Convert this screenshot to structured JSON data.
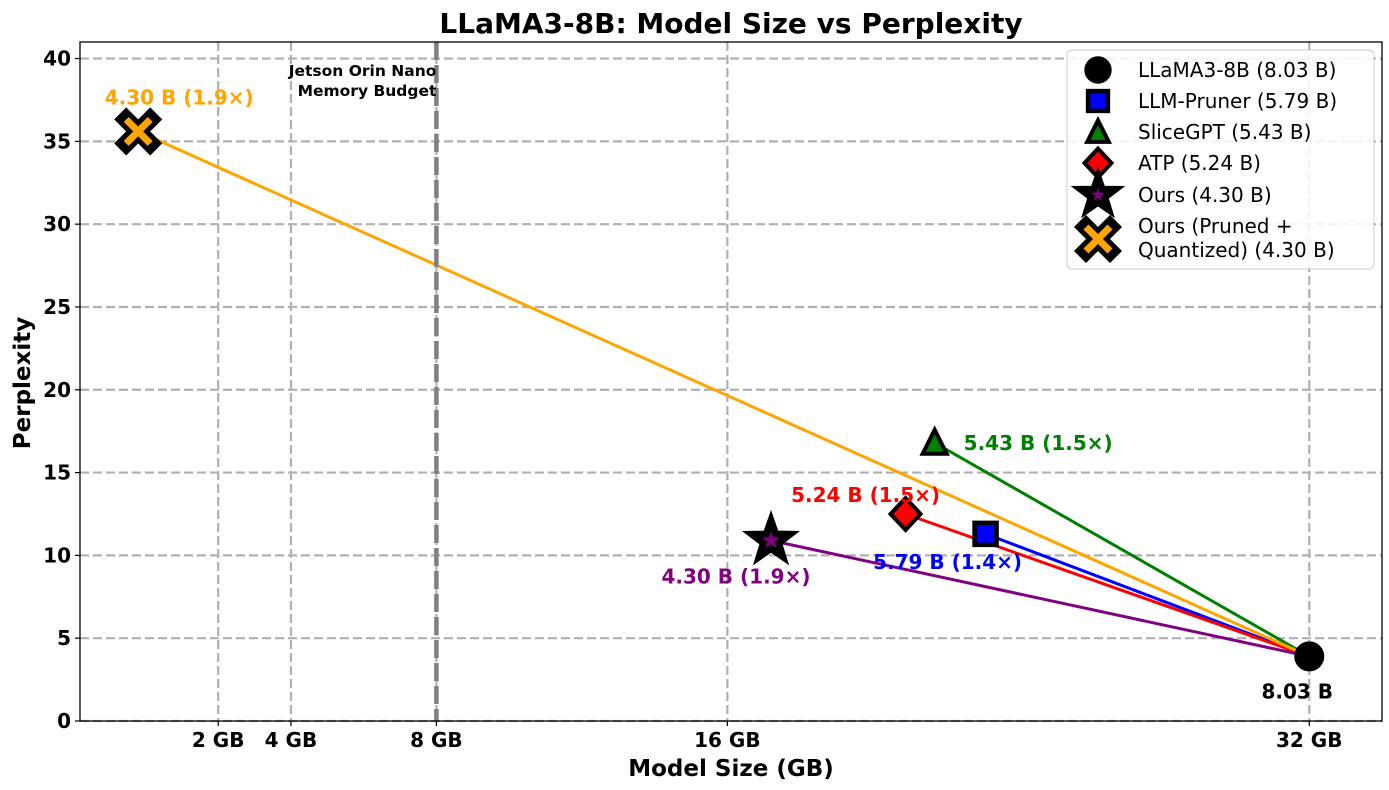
{
  "chart_data": {
    "type": "scatter",
    "title": "LLaMA3-8B: Model Size vs Perplexity",
    "xlabel": "Model Size (GB)",
    "ylabel": "Perplexity",
    "xlim": [
      -1.8,
      34
    ],
    "ylim": [
      0,
      41
    ],
    "x_ticks": [
      {
        "value": 2,
        "label": "2 GB"
      },
      {
        "value": 4,
        "label": "4 GB"
      },
      {
        "value": 8,
        "label": "8 GB"
      },
      {
        "value": 16,
        "label": "16 GB"
      },
      {
        "value": 32,
        "label": "32 GB"
      }
    ],
    "y_ticks": [
      0,
      5,
      10,
      15,
      20,
      25,
      30,
      35,
      40
    ],
    "grid": true,
    "baseline": {
      "x": 32,
      "y": 3.9
    },
    "vline": {
      "x": 8,
      "label_line1": "Jetson Orin Nano",
      "label_line2": "Memory Budget",
      "color": "#808080"
    },
    "series": [
      {
        "name": "LLaMA3-8B (8.03 B)",
        "marker": "circle",
        "color": "#000000",
        "x": 32,
        "y": 3.9,
        "label": "8.03 B",
        "label_color": "#000000"
      },
      {
        "name": "LLM-Pruner (5.79 B)",
        "marker": "square",
        "color": "#0000ff",
        "x": 23.1,
        "y": 11.3,
        "label": "5.79 B (1.4×)",
        "label_color": "#0000ff"
      },
      {
        "name": "SliceGPT (5.43 B)",
        "marker": "triangle",
        "color": "#008000",
        "x": 21.7,
        "y": 16.8,
        "label": "5.43 B (1.5×)",
        "label_color": "#008000"
      },
      {
        "name": "ATP (5.24 B)",
        "marker": "diamond",
        "color": "#ff0000",
        "x": 20.9,
        "y": 12.5,
        "label": "5.24 B (1.5×)",
        "label_color": "#ff0000"
      },
      {
        "name": "Ours (4.30 B)",
        "marker": "star",
        "color": "#800080",
        "x": 17.2,
        "y": 10.9,
        "label": "4.30 B (1.9×)",
        "label_color": "#800080"
      },
      {
        "name": "Ours (Pruned + Quantized) (4.30 B)",
        "legend_line1": "Ours (Pruned +",
        "legend_line2": "Quantized) (4.30 B)",
        "marker": "x",
        "color": "#ffa500",
        "x": -0.2,
        "y": 35.6,
        "label": "4.30 B (1.9×)",
        "label_color": "#ffa500"
      }
    ]
  }
}
